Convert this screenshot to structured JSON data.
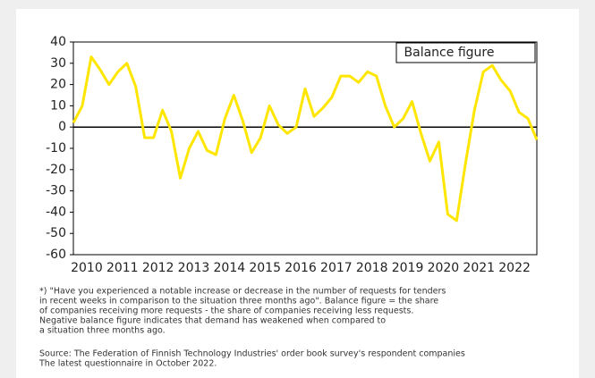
{
  "chart_data": {
    "type": "line",
    "legend_label": "Balance figure",
    "categories": [
      "2010",
      null,
      null,
      null,
      "2011",
      null,
      null,
      null,
      "2012",
      null,
      null,
      null,
      "2013",
      null,
      null,
      null,
      "2014",
      null,
      null,
      null,
      "2015",
      null,
      null,
      null,
      "2016",
      null,
      null,
      null,
      "2017",
      null,
      null,
      null,
      "2018",
      null,
      null,
      null,
      "2019",
      null,
      null,
      null,
      "2020",
      null,
      null,
      null,
      "2021",
      null,
      null,
      null,
      "2022",
      null,
      null,
      null,
      null
    ],
    "series": [
      {
        "name": "Balance figure",
        "color": "#ffe600",
        "values": [
          2,
          10,
          33,
          27,
          20,
          26,
          30,
          19,
          -5,
          -5,
          8,
          -2,
          -24,
          -10,
          -2,
          -11,
          -13,
          4,
          15,
          3,
          -12,
          -5,
          10,
          1,
          -3,
          0,
          18,
          5,
          9,
          14,
          24,
          24,
          21,
          26,
          24,
          10,
          0,
          4,
          12,
          -3,
          -16,
          -7,
          -41,
          -44,
          -17,
          8,
          26,
          29,
          22,
          17,
          7,
          4,
          -6
        ]
      }
    ],
    "ylim": [
      -60,
      40
    ],
    "yticks": [
      -60,
      -50,
      -40,
      -30,
      -20,
      -10,
      0,
      10,
      20,
      30,
      40
    ],
    "zero_line": true,
    "notes": [
      "*) \"Have you experienced a notable increase or decrease in the number of requests for tenders",
      "in recent weeks in comparison to the situation three months ago\". Balance figure = the share",
      "of companies receiving more requests - the share of companies receiving less requests.",
      "Negative balance figure indicates that demand has weakened when compared to",
      "a situation three months ago."
    ],
    "source": [
      "Source: The Federation of Finnish Technology Industries' order book survey's respondent companies",
      "The latest questionnaire in October 2022."
    ]
  }
}
